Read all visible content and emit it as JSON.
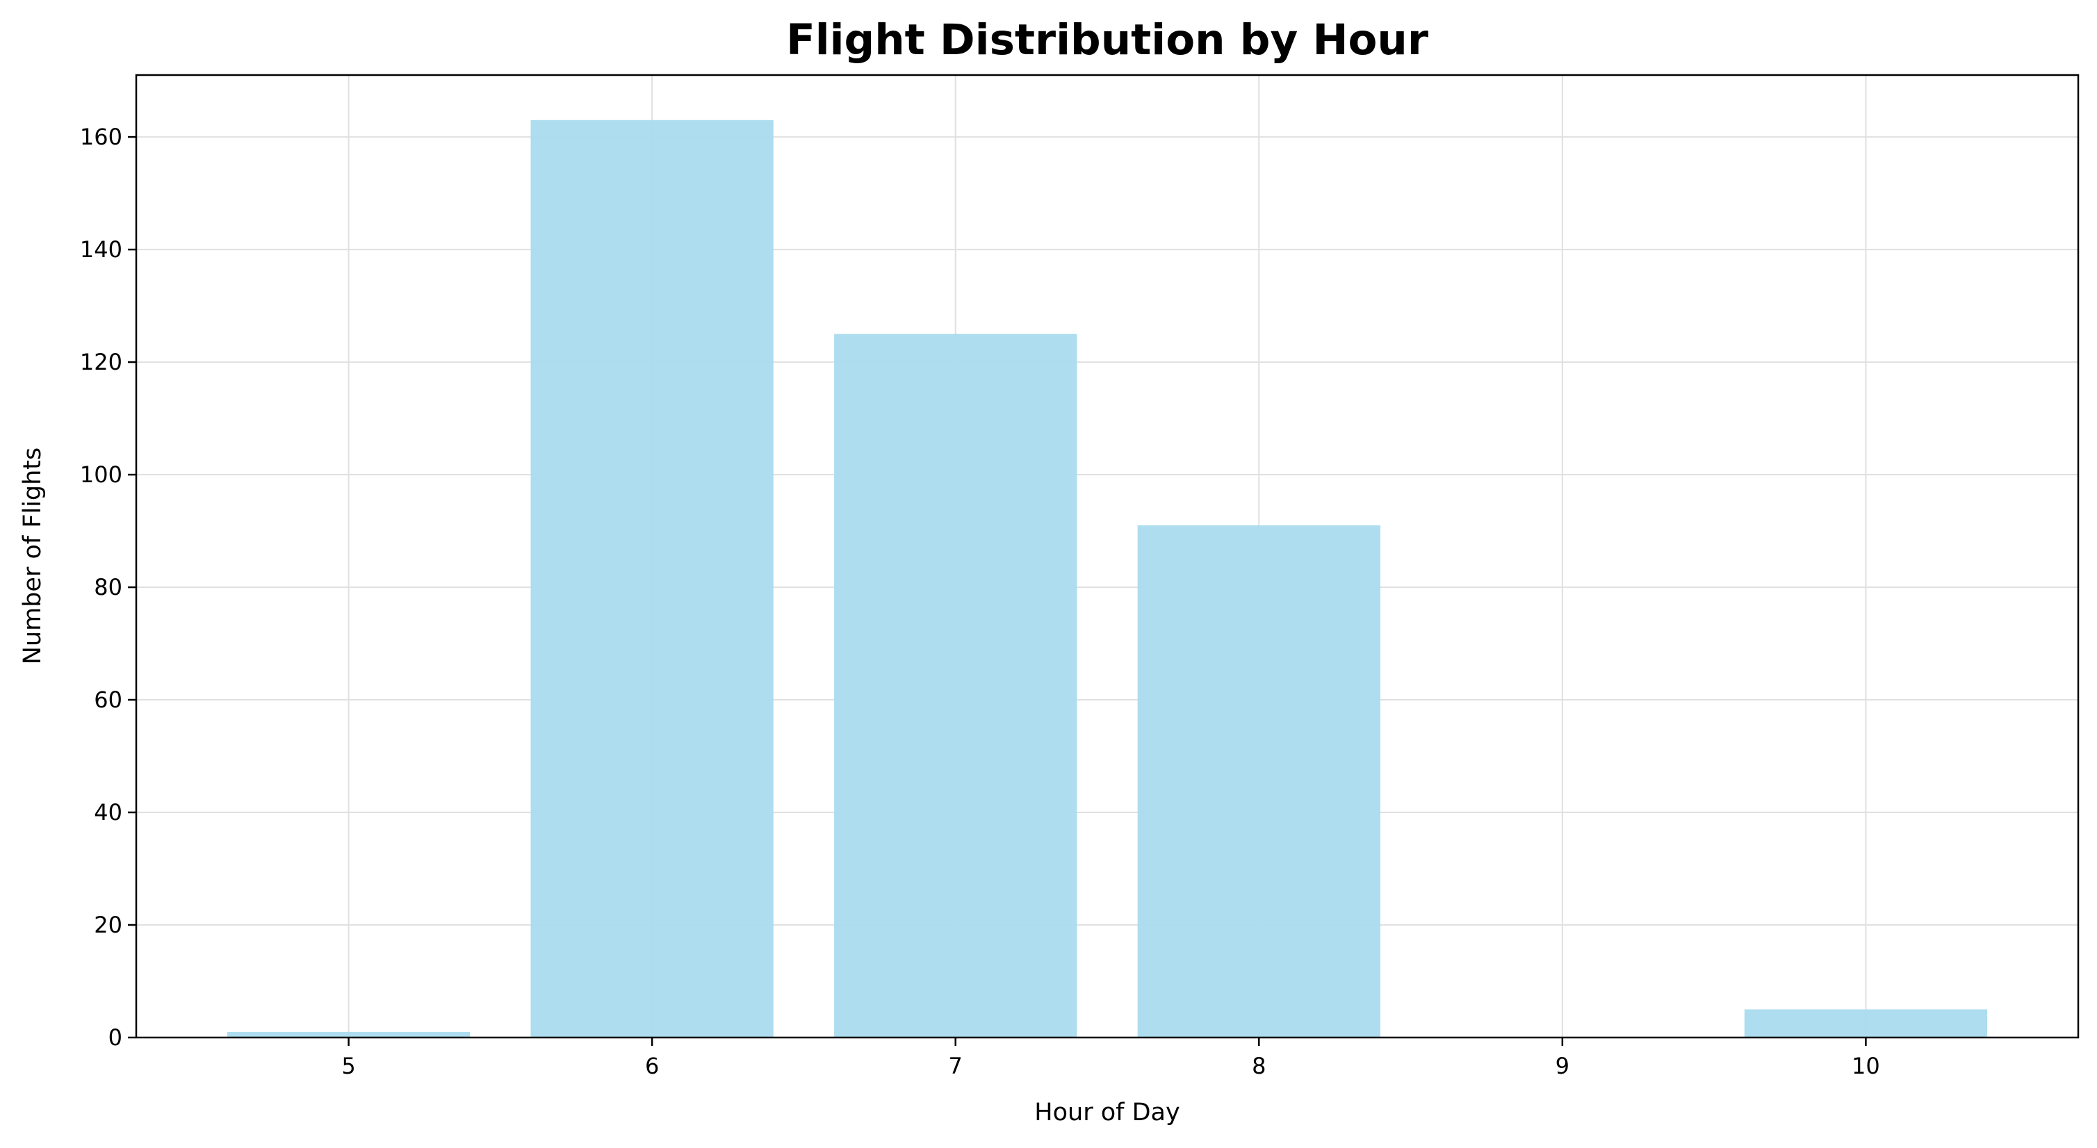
{
  "chart_data": {
    "type": "bar",
    "title": "Flight Distribution by Hour",
    "xlabel": "Hour of Day",
    "ylabel": "Number of Flights",
    "categories": [
      "5",
      "6",
      "7",
      "8",
      "9",
      "10"
    ],
    "x": [
      5,
      6,
      7,
      8,
      9,
      10
    ],
    "values": [
      1,
      163,
      125,
      91,
      0,
      5
    ],
    "xlim": [
      4.3,
      10.7
    ],
    "ylim": [
      0,
      171
    ],
    "yticks": [
      0,
      20,
      40,
      60,
      80,
      100,
      120,
      140,
      160
    ],
    "grid": true,
    "legend": "none",
    "colors": {
      "bar": "#a9dbee",
      "grid": "#e0e0e0",
      "axis": "#000000"
    }
  }
}
